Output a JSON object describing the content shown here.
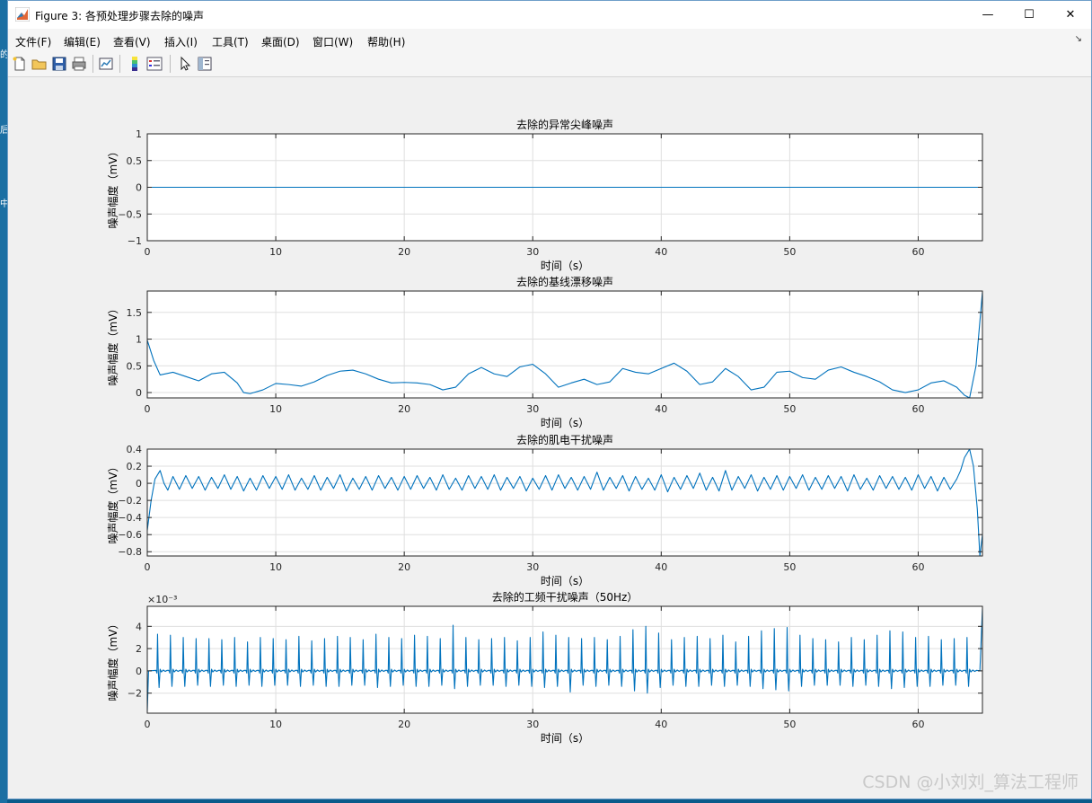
{
  "window": {
    "title": "Figure 3: 各预处理步骤去除的噪声",
    "minimize": "—",
    "maximize": "☐",
    "close": "✕"
  },
  "menubar": {
    "items": [
      "文件(F)",
      "编辑(E)",
      "查看(V)",
      "插入(I)",
      "工具(T)",
      "桌面(D)",
      "窗口(W)",
      "帮助(H)"
    ]
  },
  "toolbar": {
    "icons": [
      "new-figure-icon",
      "open-file-icon",
      "save-icon",
      "print-icon",
      "link-plot-icon",
      "insert-colorbar-icon",
      "insert-legend-icon",
      "edit-plot-icon",
      "property-inspector-icon"
    ]
  },
  "colors": {
    "line": "#0072BD",
    "grid": "#dfdfdf",
    "axes_bg": "#ffffff"
  },
  "watermark": "CSDN @小刘刘_算法工程师",
  "chart_data": [
    {
      "type": "line",
      "title": "去除的异常尖峰噪声",
      "xlabel": "时间（s）",
      "ylabel": "噪声幅度（mV）",
      "xlim": [
        0,
        65
      ],
      "ylim": [
        -1,
        1
      ],
      "xticks": [
        0,
        10,
        20,
        30,
        40,
        50,
        60
      ],
      "yticks": [
        -1,
        -0.5,
        0,
        0.5,
        1
      ],
      "yticklabels": [
        "−1",
        "−0.5",
        "0",
        "0.5",
        "1"
      ],
      "exponent": "",
      "grid": true,
      "series": [
        {
          "x": [
            0,
            65
          ],
          "y": [
            0,
            0
          ]
        }
      ]
    },
    {
      "type": "line",
      "title": "去除的基线漂移噪声",
      "xlabel": "时间（s）",
      "ylabel": "噪声幅度（mV）",
      "xlim": [
        0,
        65
      ],
      "ylim": [
        -0.1,
        1.9
      ],
      "xticks": [
        0,
        10,
        20,
        30,
        40,
        50,
        60
      ],
      "yticks": [
        0,
        0.5,
        1,
        1.5
      ],
      "yticklabels": [
        "0",
        "0.5",
        "1",
        "1.5"
      ],
      "exponent": "",
      "grid": true,
      "series": [
        {
          "x": [
            0,
            0.5,
            1,
            2,
            3,
            4,
            5,
            6,
            7,
            7.5,
            8,
            9,
            10,
            11,
            12,
            13,
            14,
            15,
            16,
            17,
            18,
            19,
            20,
            21,
            22,
            23,
            24,
            25,
            26,
            27,
            28,
            29,
            30,
            31,
            32,
            33,
            34,
            35,
            36,
            37,
            38,
            39,
            40,
            41,
            42,
            43,
            44,
            45,
            46,
            47,
            48,
            49,
            50,
            51,
            52,
            53,
            54,
            55,
            56,
            57,
            58,
            59,
            60,
            61,
            62,
            63,
            63.6,
            64,
            64.5,
            65
          ],
          "y": [
            0.98,
            0.6,
            0.33,
            0.38,
            0.3,
            0.22,
            0.35,
            0.38,
            0.18,
            0.0,
            -0.02,
            0.05,
            0.17,
            0.15,
            0.12,
            0.2,
            0.32,
            0.4,
            0.42,
            0.35,
            0.25,
            0.18,
            0.19,
            0.18,
            0.15,
            0.05,
            0.1,
            0.35,
            0.47,
            0.35,
            0.3,
            0.48,
            0.53,
            0.35,
            0.1,
            0.18,
            0.25,
            0.15,
            0.2,
            0.45,
            0.38,
            0.35,
            0.45,
            0.55,
            0.4,
            0.15,
            0.2,
            0.45,
            0.3,
            0.05,
            0.1,
            0.38,
            0.4,
            0.28,
            0.25,
            0.42,
            0.48,
            0.38,
            0.3,
            0.2,
            0.05,
            0.0,
            0.05,
            0.18,
            0.22,
            0.1,
            -0.05,
            -0.1,
            0.5,
            1.88
          ]
        }
      ]
    },
    {
      "type": "line",
      "title": "去除的肌电干扰噪声",
      "xlabel": "时间（s）",
      "ylabel": "噪声幅度（mV）",
      "xlim": [
        0,
        65
      ],
      "ylim": [
        -0.85,
        0.4
      ],
      "xticks": [
        0,
        10,
        20,
        30,
        40,
        50,
        60
      ],
      "yticks": [
        -0.8,
        -0.6,
        -0.4,
        -0.2,
        0,
        0.2,
        0.4
      ],
      "yticklabels": [
        "−0.8",
        "−0.6",
        "−0.4",
        "−0.2",
        "0",
        "0.2",
        "0.4"
      ],
      "exponent": "",
      "grid": true,
      "series": [
        {
          "x": [
            0,
            0.3,
            0.6,
            1.0,
            1.3,
            1.6,
            2.0,
            2.5,
            3.0,
            3.5,
            4.0,
            4.5,
            5.0,
            5.5,
            6.0,
            6.5,
            7.0,
            7.5,
            8.0,
            8.5,
            9.0,
            9.5,
            10.0,
            10.5,
            11.0,
            11.5,
            12.0,
            12.5,
            13.0,
            13.5,
            14.0,
            14.5,
            15.0,
            15.5,
            16.0,
            16.5,
            17.0,
            17.5,
            18.0,
            18.5,
            19.0,
            19.5,
            20.0,
            20.5,
            21.0,
            21.5,
            22.0,
            22.5,
            23.0,
            23.5,
            24.0,
            24.5,
            25.0,
            25.5,
            26.0,
            26.5,
            27.0,
            27.5,
            28.0,
            28.5,
            29.0,
            29.5,
            30.0,
            30.5,
            31.0,
            31.5,
            32.0,
            32.5,
            33.0,
            33.5,
            34.0,
            34.5,
            35.0,
            35.5,
            36.0,
            36.5,
            37.0,
            37.5,
            38.0,
            38.5,
            39.0,
            39.5,
            40.0,
            40.5,
            41.0,
            41.5,
            42.0,
            42.5,
            43.0,
            43.5,
            44.0,
            44.5,
            45.0,
            45.5,
            46.0,
            46.5,
            47.0,
            47.5,
            48.0,
            48.5,
            49.0,
            49.5,
            50.0,
            50.5,
            51.0,
            51.5,
            52.0,
            52.5,
            53.0,
            53.5,
            54.0,
            54.5,
            55.0,
            55.5,
            56.0,
            56.5,
            57.0,
            57.5,
            58.0,
            58.5,
            59.0,
            59.5,
            60.0,
            60.5,
            61.0,
            61.5,
            62.0,
            62.5,
            63.0,
            63.3,
            63.6,
            64.0,
            64.3,
            64.6,
            64.8,
            65
          ],
          "y": [
            -0.55,
            -0.2,
            0.05,
            0.15,
            0.0,
            -0.08,
            0.08,
            -0.07,
            0.09,
            -0.06,
            0.08,
            -0.08,
            0.07,
            -0.06,
            0.1,
            -0.07,
            0.08,
            -0.09,
            0.06,
            -0.08,
            0.09,
            -0.06,
            0.08,
            -0.07,
            0.1,
            -0.08,
            0.06,
            -0.07,
            0.09,
            -0.08,
            0.07,
            -0.06,
            0.1,
            -0.09,
            0.06,
            -0.07,
            0.08,
            -0.08,
            0.09,
            -0.06,
            0.07,
            -0.08,
            0.08,
            -0.07,
            0.09,
            -0.06,
            0.07,
            -0.08,
            0.1,
            -0.07,
            0.06,
            -0.08,
            0.09,
            -0.06,
            0.08,
            -0.07,
            0.1,
            -0.08,
            0.07,
            -0.06,
            0.08,
            -0.09,
            0.06,
            -0.07,
            0.09,
            -0.08,
            0.1,
            -0.06,
            0.07,
            -0.08,
            0.08,
            -0.07,
            0.13,
            -0.08,
            0.07,
            -0.06,
            0.09,
            -0.09,
            0.08,
            -0.07,
            0.06,
            -0.08,
            0.1,
            -0.1,
            0.07,
            -0.07,
            0.09,
            -0.06,
            0.12,
            -0.08,
            0.07,
            -0.09,
            0.15,
            -0.08,
            0.08,
            -0.06,
            0.1,
            -0.09,
            0.07,
            -0.07,
            0.09,
            -0.08,
            0.08,
            -0.06,
            0.1,
            -0.08,
            0.07,
            -0.07,
            0.09,
            -0.06,
            0.08,
            -0.09,
            0.1,
            -0.07,
            0.06,
            -0.08,
            0.09,
            -0.06,
            0.08,
            -0.07,
            0.07,
            -0.08,
            0.1,
            -0.06,
            0.08,
            -0.09,
            0.07,
            -0.07,
            0.05,
            0.15,
            0.3,
            0.4,
            0.2,
            -0.3,
            -0.85,
            -0.6
          ]
        }
      ]
    },
    {
      "type": "line",
      "title": "去除的工频干扰噪声（50Hz）",
      "xlabel": "时间（s）",
      "ylabel": "噪声幅度（mV）",
      "xlim": [
        0,
        65
      ],
      "ylim": [
        -3.8,
        5.8
      ],
      "xticks": [
        0,
        10,
        20,
        30,
        40,
        50,
        60
      ],
      "yticks": [
        -2,
        0,
        2,
        4
      ],
      "yticklabels": [
        "−2",
        "0",
        "2",
        "4"
      ],
      "exponent": "×10⁻³",
      "grid": true,
      "spike_interval_s": 1.0,
      "spike_count": 64,
      "spike_peaks": [
        3.3,
        3.2,
        3.0,
        2.9,
        2.9,
        2.8,
        3.0,
        2.6,
        3.0,
        2.9,
        2.8,
        3.1,
        2.7,
        2.9,
        3.1,
        3.0,
        2.8,
        3.3,
        3.0,
        2.9,
        3.2,
        3.1,
        2.9,
        4.1,
        3.0,
        2.8,
        2.9,
        3.0,
        2.7,
        3.0,
        3.5,
        3.2,
        3.0,
        2.9,
        3.0,
        2.8,
        3.1,
        3.7,
        4.0,
        3.4,
        2.8,
        3.0,
        3.1,
        2.9,
        3.2,
        2.6,
        3.1,
        3.6,
        3.8,
        3.9,
        3.2,
        2.9,
        2.8,
        2.6,
        3.0,
        2.8,
        3.2,
        3.6,
        3.5,
        3.0,
        3.1,
        2.8,
        2.9,
        3.0
      ],
      "spike_troughs": [
        -1.5,
        -1.4,
        -1.4,
        -1.3,
        -1.4,
        -1.3,
        -1.4,
        -1.3,
        -1.4,
        -1.3,
        -1.3,
        -1.4,
        -1.3,
        -1.4,
        -1.4,
        -1.3,
        -1.3,
        -1.5,
        -1.4,
        -1.3,
        -1.4,
        -1.4,
        -1.3,
        -1.6,
        -1.4,
        -1.3,
        -1.3,
        -1.4,
        -1.3,
        -1.4,
        -1.5,
        -1.4,
        -1.9,
        -1.3,
        -1.4,
        -1.3,
        -1.4,
        -1.8,
        -2.0,
        -1.5,
        -1.3,
        -1.4,
        -1.4,
        -1.3,
        -1.4,
        -1.3,
        -1.4,
        -1.6,
        -1.7,
        -1.8,
        -1.4,
        -1.3,
        -1.3,
        -1.3,
        -1.4,
        -1.3,
        -1.4,
        -1.6,
        -1.5,
        -1.4,
        -1.4,
        -1.3,
        -1.3,
        -1.4
      ],
      "edge_values": {
        "start": -3.6,
        "end": 5.6
      }
    }
  ]
}
